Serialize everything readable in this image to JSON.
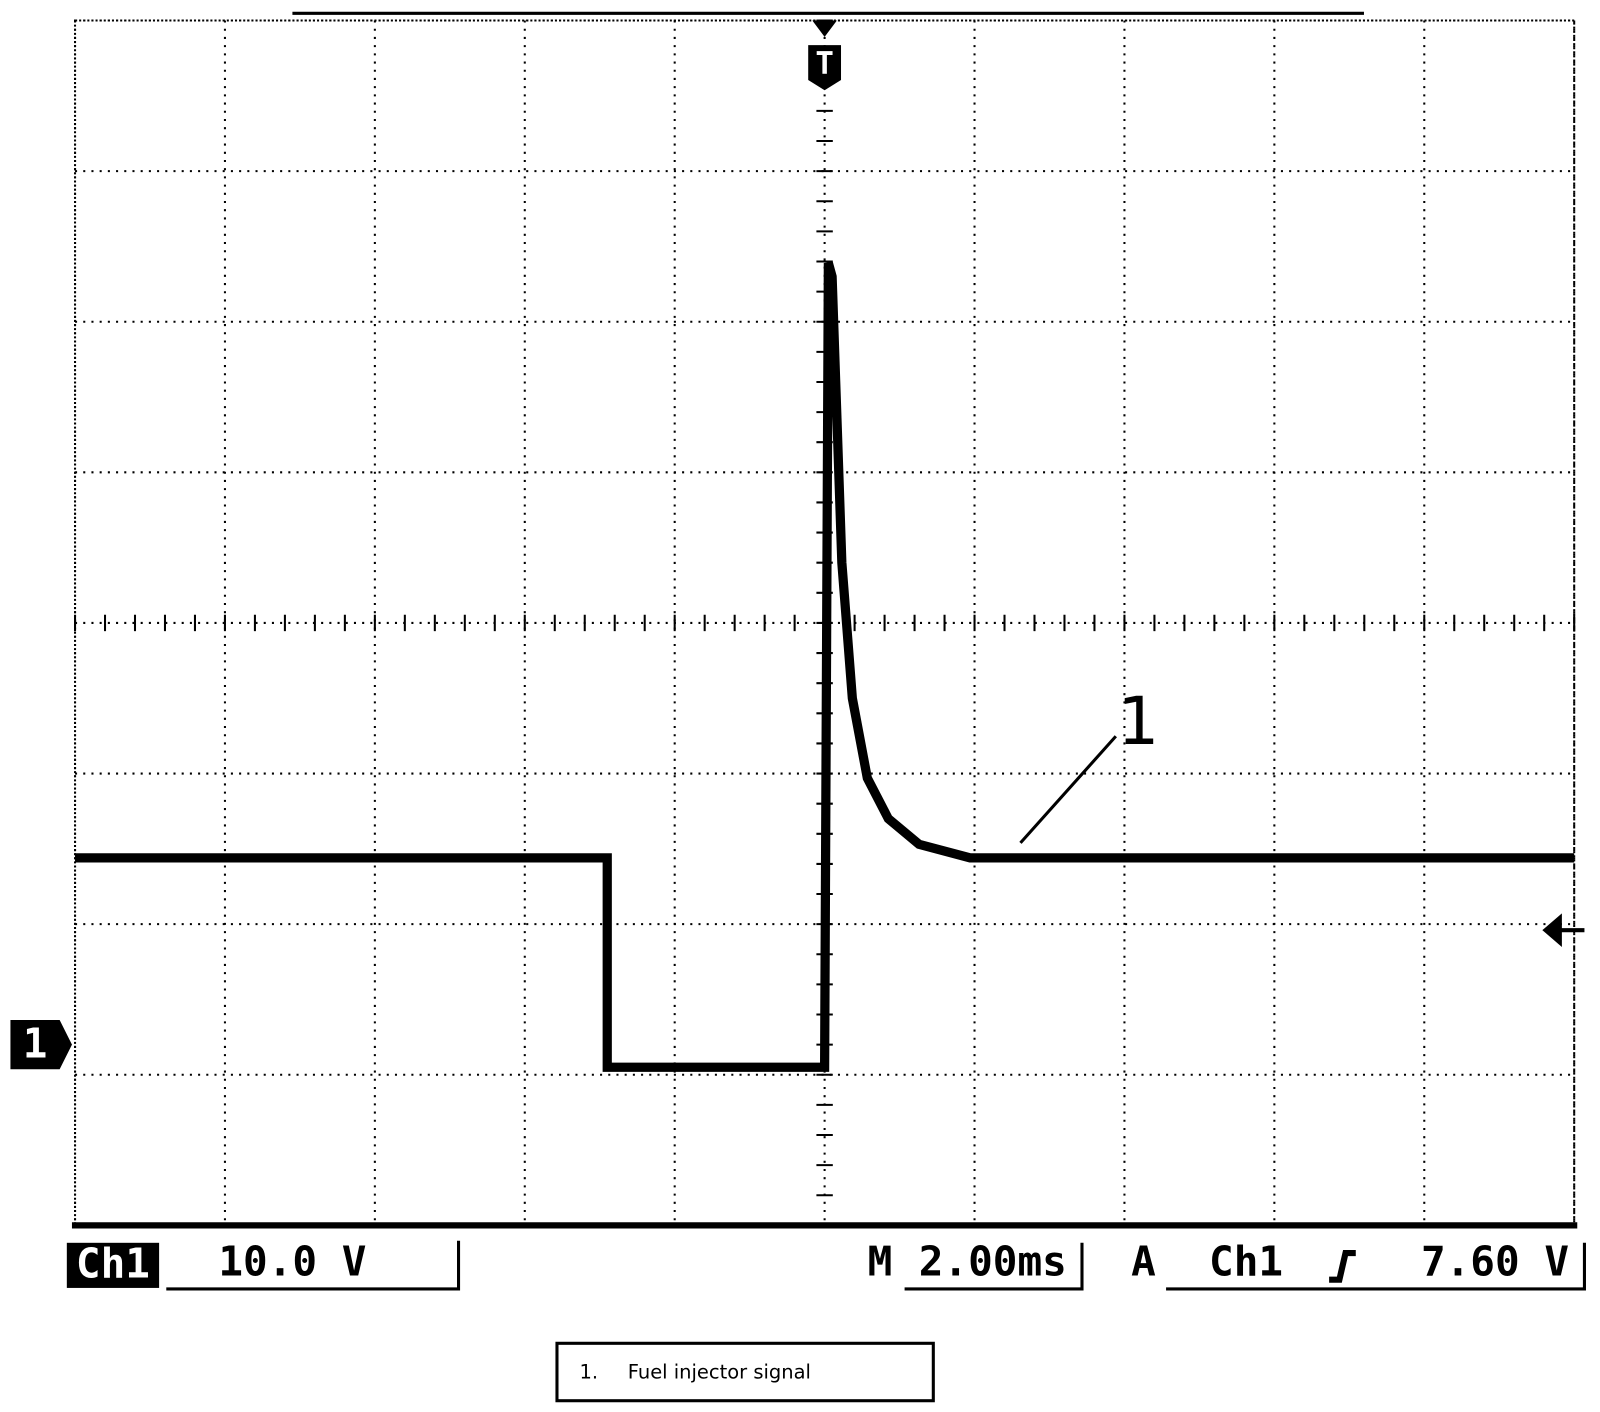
{
  "chart_data": {
    "type": "line",
    "trigger_marker": "T",
    "channel_marker": "1",
    "x": [
      -10,
      -2.9,
      -2.9,
      0,
      0.05,
      0.1,
      0.23,
      0.37,
      0.57,
      0.85,
      1.26,
      1.94,
      3,
      10
    ],
    "series": [
      {
        "name": "Fuel injector signal",
        "color": "#000000",
        "values": [
          12.4,
          12.4,
          -1.5,
          -1.5,
          51.9,
          51,
          32,
          23,
          17.7,
          15,
          13.3,
          12.4,
          12.4,
          12.4
        ]
      }
    ],
    "xlim": [
      -10,
      10
    ],
    "ylim": [
      -12,
      68
    ],
    "xgrid": [
      -10,
      -8,
      -6,
      -4,
      -2,
      0,
      2,
      4,
      6,
      8,
      10
    ],
    "ygrid": [
      -12,
      -2,
      8,
      18,
      28,
      38,
      48,
      58,
      68
    ],
    "annotation": "1",
    "status": {
      "channel": "Ch1",
      "volts_per_div": "10.0 V",
      "m": "M",
      "time_per_div": "2.00ms",
      "a": "A",
      "trigger_source": "Ch1"
    },
    "trigger_level": {
      "value": 7.6,
      "label": "7.60 V"
    },
    "legend": {
      "number": "1.",
      "text": "Fuel injector signal"
    }
  }
}
